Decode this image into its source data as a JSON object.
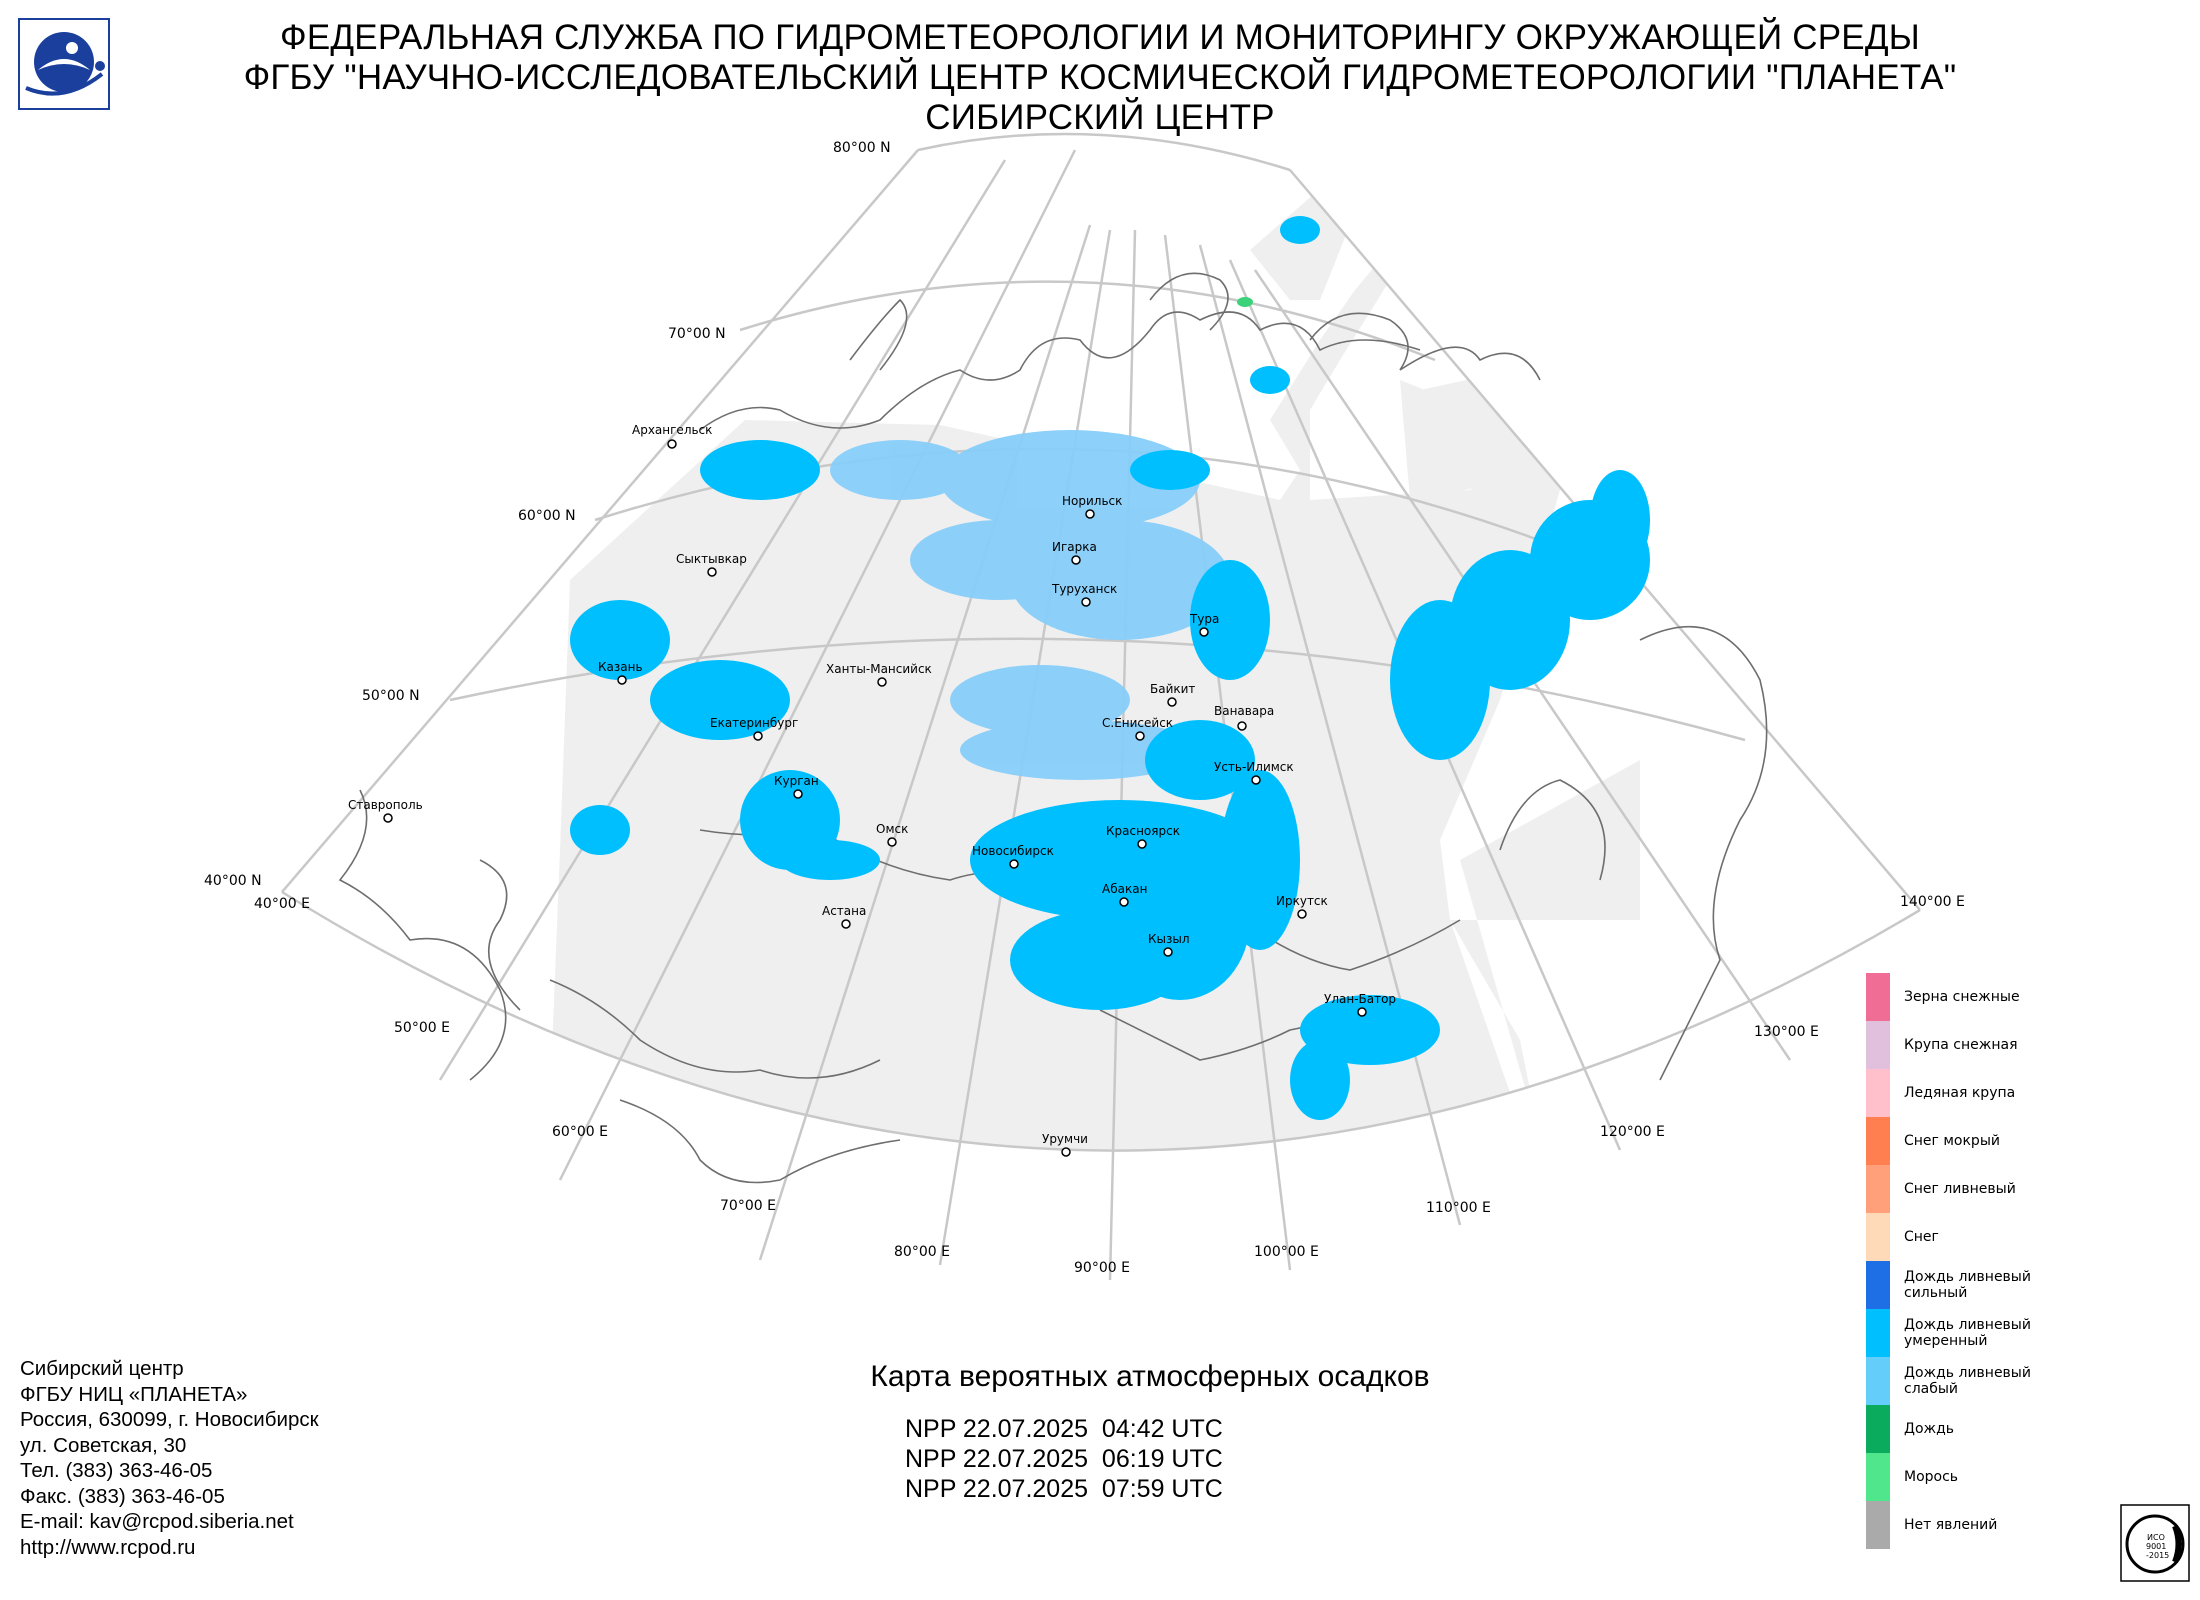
{
  "header": {
    "line1": "ФЕДЕРАЛЬНАЯ СЛУЖБА ПО ГИДРОМЕТЕОРОЛОГИИ И МОНИТОРИНГУ ОКРУЖАЮЩЕЙ СРЕДЫ",
    "line2": "ФГБУ \"НАУЧНО-ИССЛЕДОВАТЕЛЬСКИЙ ЦЕНТР КОСМИЧЕСКОЙ ГИДРОМЕТЕОРОЛОГИИ \"ПЛАНЕТА\"",
    "line3": "СИБИРСКИЙ ЦЕНТР"
  },
  "map": {
    "lat_labels": [
      "80°00 N",
      "70°00 N",
      "60°00 N",
      "50°00 N",
      "40°00 N"
    ],
    "lon_labels": [
      "40°00 E",
      "50°00 E",
      "60°00 E",
      "70°00 E",
      "80°00 E",
      "90°00 E",
      "100°00 E",
      "110°00 E",
      "120°00 E",
      "130°00 E",
      "140°00 E"
    ],
    "cities": [
      "Архангельск",
      "Норильск",
      "Игарка",
      "Туруханск",
      "Тура",
      "Сыктывкар",
      "Казань",
      "Ханты-Мансийск",
      "Байкит",
      "Ванавара",
      "Екатеринбург",
      "С.Енисейск",
      "Усть-Илимск",
      "Курган",
      "Ставрополь",
      "Омск",
      "Новосибирск",
      "Красноярск",
      "Астана",
      "Абакан",
      "Иркутск",
      "Кызыл",
      "Улан-Батор",
      "Урумчи"
    ],
    "colors": {
      "coverage": "#efefef",
      "rain_moderate": "#00bfff",
      "rain_light": "#87cefa",
      "drizzle": "#3cd27a",
      "grid": "#c8c8c8",
      "coast": "#6e6e6e"
    }
  },
  "legend": [
    {
      "label": "Зерна снежные",
      "color": "#f06e96"
    },
    {
      "label": "Крупа снежная",
      "color": "#e0c0dc"
    },
    {
      "label": "Ледяная крупа",
      "color": "#ffc0cb"
    },
    {
      "label": "Снег мокрый",
      "color": "#ff7f50"
    },
    {
      "label": "Снег ливневый",
      "color": "#ffa07a"
    },
    {
      "label": "Снег",
      "color": "#ffdab9"
    },
    {
      "label": "Дождь ливневый\nсильный",
      "color": "#1e6ee6"
    },
    {
      "label": "Дождь ливневый\nумеренный",
      "color": "#00bfff"
    },
    {
      "label": "Дождь ливневый\nслабый",
      "color": "#64cdfa"
    },
    {
      "label": "Дождь",
      "color": "#0aab5c"
    },
    {
      "label": "Морось",
      "color": "#50e68c"
    },
    {
      "label": "Нет явлений",
      "color": "#aaaaaa"
    }
  ],
  "contacts": {
    "line1": "Сибирский центр",
    "line2": "ФГБУ НИЦ «ПЛАНЕТА»",
    "line3": "Россия, 630099, г. Новосибирск",
    "line4": "ул. Советская, 30",
    "line5": "Тел. (383) 363-46-05",
    "line6": "Факс. (383) 363-46-05",
    "line7": "E-mail: kav@rcpod.siberia.net",
    "line8": "http://www.rcpod.ru"
  },
  "subtitle": "Карта вероятных атмосферных осадков",
  "passes": [
    "NPP 22.07.2025  04:42 UTC",
    "NPP 22.07.2025  06:19 UTC",
    "NPP 22.07.2025  07:59 UTC"
  ],
  "iso_badge": {
    "line1": "ИСО",
    "line2": "9001",
    "line3": "-2015"
  }
}
